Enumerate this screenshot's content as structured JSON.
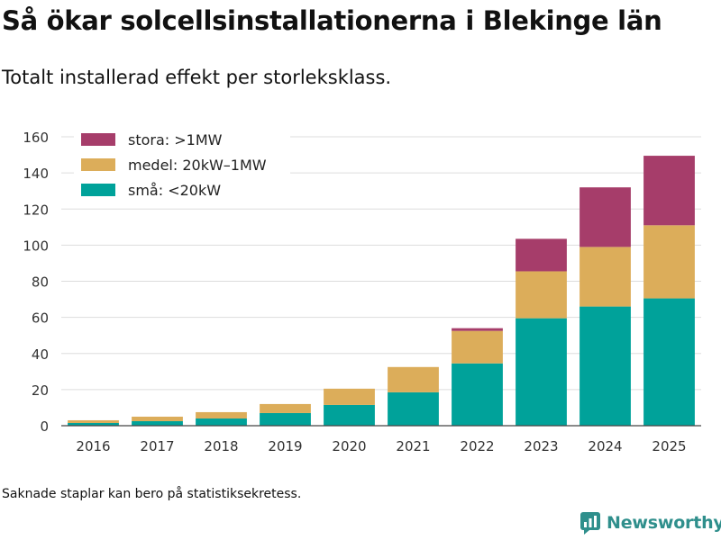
{
  "title": "Så ökar solcellsinstallationerna i Blekinge län",
  "subtitle": "Totalt installerad effekt per storleksklass.",
  "footnote": "Saknade staplar kan bero på statistiksekretess.",
  "brand": {
    "name": "Newsworthy",
    "color": "#2f8f8c"
  },
  "chart_data": {
    "type": "bar",
    "stacked": true,
    "title": "Så ökar solcellsinstallationerna i Blekinge län",
    "subtitle": "Totalt installerad effekt per storleksklass.",
    "xlabel": "",
    "ylabel": "",
    "ylim": [
      0,
      160
    ],
    "yticks": [
      0,
      20,
      40,
      60,
      80,
      100,
      120,
      140,
      160
    ],
    "grid": true,
    "legend_position": "top-left",
    "categories": [
      "2016",
      "2017",
      "2018",
      "2019",
      "2020",
      "2021",
      "2022",
      "2023",
      "2024",
      "2025"
    ],
    "series": [
      {
        "name": "små: <20kW",
        "color": "#00a29a",
        "values": [
          1.5,
          2.5,
          4.0,
          7.0,
          11.5,
          18.5,
          34.5,
          59.5,
          66.0,
          70.5
        ]
      },
      {
        "name": "medel: 20kW–1MW",
        "color": "#dcad5a",
        "values": [
          1.5,
          2.5,
          3.5,
          5.0,
          9.0,
          14.0,
          18.0,
          26.0,
          33.0,
          40.5
        ]
      },
      {
        "name": "stora: >1MW",
        "color": "#a63d6a",
        "values": [
          0,
          0,
          0,
          0,
          0,
          0,
          1.5,
          18.0,
          33.0,
          38.5
        ]
      }
    ],
    "legend_order": [
      "stora: >1MW",
      "medel: 20kW–1MW",
      "små: <20kW"
    ]
  }
}
